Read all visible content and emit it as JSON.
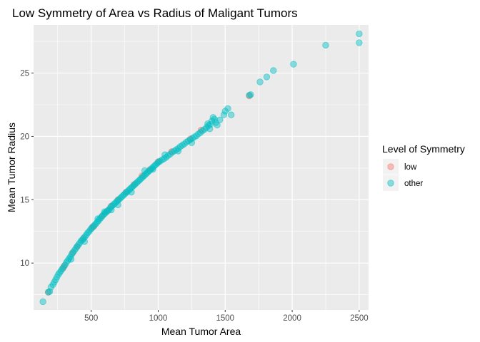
{
  "chart_data": {
    "type": "scatter",
    "title": "Low Symmetry of Area vs Radius of Maligant Tumors",
    "xlabel": "Mean Tumor Area",
    "ylabel": "Mean Tumor Radius",
    "xlim": [
      70,
      2570
    ],
    "ylim": [
      6.3,
      28.8
    ],
    "x_ticks": [
      500,
      1000,
      1500,
      2000,
      2500
    ],
    "y_ticks": [
      10,
      15,
      20,
      25
    ],
    "x_minor": [
      250,
      750,
      1250,
      1750,
      2250
    ],
    "y_minor": [
      7.5,
      12.5,
      17.5,
      22.5,
      27.5
    ],
    "grid": true,
    "legend": {
      "title": "Level of Symmetry",
      "placement": "right",
      "entries": [
        {
          "label": "low",
          "color": "#f8766d"
        },
        {
          "label": "other",
          "color": "#00bfc4"
        }
      ]
    },
    "series": [
      {
        "name": "low",
        "color": "#f8766d",
        "points": [
          [
            180,
            7.7
          ],
          [
            290,
            9.6
          ],
          [
            300,
            9.8
          ],
          [
            360,
            10.8
          ],
          [
            395,
            11.3
          ],
          [
            440,
            11.9
          ],
          [
            505,
            12.8
          ],
          [
            520,
            12.9
          ],
          [
            580,
            13.7
          ],
          [
            620,
            14.1
          ],
          [
            650,
            14.5
          ],
          [
            700,
            15.0
          ],
          [
            760,
            15.6
          ],
          [
            820,
            16.2
          ],
          [
            880,
            16.9
          ],
          [
            940,
            17.4
          ],
          [
            1000,
            18.0
          ],
          [
            1100,
            18.8
          ],
          [
            1240,
            19.8
          ],
          [
            1320,
            20.5
          ],
          [
            1680,
            23.2
          ]
        ]
      },
      {
        "name": "other",
        "color": "#00bfc4",
        "points": [
          [
            140,
            6.95
          ],
          [
            180,
            7.7
          ],
          [
            190,
            7.75
          ],
          [
            200,
            8.1
          ],
          [
            215,
            8.3
          ],
          [
            225,
            8.5
          ],
          [
            235,
            8.7
          ],
          [
            245,
            8.9
          ],
          [
            255,
            9.1
          ],
          [
            265,
            9.25
          ],
          [
            275,
            9.4
          ],
          [
            285,
            9.55
          ],
          [
            295,
            9.7
          ],
          [
            305,
            9.85
          ],
          [
            315,
            10.05
          ],
          [
            325,
            10.2
          ],
          [
            335,
            10.35
          ],
          [
            345,
            10.5
          ],
          [
            355,
            10.7
          ],
          [
            365,
            10.85
          ],
          [
            375,
            11.0
          ],
          [
            385,
            11.15
          ],
          [
            395,
            11.3
          ],
          [
            405,
            11.45
          ],
          [
            415,
            11.6
          ],
          [
            425,
            11.75
          ],
          [
            435,
            11.85
          ],
          [
            445,
            12.0
          ],
          [
            455,
            12.1
          ],
          [
            465,
            12.25
          ],
          [
            475,
            12.4
          ],
          [
            485,
            12.5
          ],
          [
            495,
            12.65
          ],
          [
            505,
            12.75
          ],
          [
            515,
            12.9
          ],
          [
            525,
            13.0
          ],
          [
            535,
            13.1
          ],
          [
            545,
            13.25
          ],
          [
            555,
            13.35
          ],
          [
            565,
            13.5
          ],
          [
            575,
            13.6
          ],
          [
            585,
            13.75
          ],
          [
            595,
            13.85
          ],
          [
            605,
            13.95
          ],
          [
            615,
            14.05
          ],
          [
            625,
            14.15
          ],
          [
            635,
            14.25
          ],
          [
            645,
            14.4
          ],
          [
            655,
            14.5
          ],
          [
            665,
            14.6
          ],
          [
            675,
            14.7
          ],
          [
            685,
            14.8
          ],
          [
            695,
            14.9
          ],
          [
            705,
            15.0
          ],
          [
            715,
            15.1
          ],
          [
            725,
            15.2
          ],
          [
            735,
            15.3
          ],
          [
            745,
            15.4
          ],
          [
            755,
            15.5
          ],
          [
            765,
            15.6
          ],
          [
            775,
            15.7
          ],
          [
            785,
            15.8
          ],
          [
            795,
            15.9
          ],
          [
            805,
            16.0
          ],
          [
            815,
            16.1
          ],
          [
            825,
            16.2
          ],
          [
            835,
            16.3
          ],
          [
            845,
            16.4
          ],
          [
            855,
            16.5
          ],
          [
            865,
            16.6
          ],
          [
            875,
            16.7
          ],
          [
            885,
            16.8
          ],
          [
            895,
            16.9
          ],
          [
            905,
            17.0
          ],
          [
            915,
            17.1
          ],
          [
            925,
            17.2
          ],
          [
            935,
            17.3
          ],
          [
            945,
            17.4
          ],
          [
            955,
            17.5
          ],
          [
            965,
            17.6
          ],
          [
            975,
            17.7
          ],
          [
            985,
            17.8
          ],
          [
            995,
            17.9
          ],
          [
            1005,
            18.0
          ],
          [
            1015,
            18.05
          ],
          [
            1030,
            18.15
          ],
          [
            1045,
            18.25
          ],
          [
            1060,
            18.35
          ],
          [
            1075,
            18.5
          ],
          [
            1090,
            18.6
          ],
          [
            1105,
            18.75
          ],
          [
            1120,
            18.85
          ],
          [
            1135,
            18.95
          ],
          [
            1150,
            19.05
          ],
          [
            1165,
            19.2
          ],
          [
            1180,
            19.3
          ],
          [
            1195,
            19.4
          ],
          [
            1210,
            19.55
          ],
          [
            1225,
            19.65
          ],
          [
            1240,
            19.75
          ],
          [
            1255,
            19.85
          ],
          [
            1270,
            19.95
          ],
          [
            1285,
            20.05
          ],
          [
            1300,
            20.2
          ],
          [
            1315,
            20.3
          ],
          [
            1330,
            20.45
          ],
          [
            1345,
            20.55
          ],
          [
            1360,
            20.7
          ],
          [
            1375,
            20.85
          ],
          [
            1390,
            20.95
          ],
          [
            1400,
            21.2
          ],
          [
            1410,
            21.5
          ],
          [
            1420,
            21.35
          ],
          [
            1430,
            21.1
          ],
          [
            1370,
            21.0
          ],
          [
            1385,
            20.6
          ],
          [
            1440,
            20.9
          ],
          [
            1460,
            21.3
          ],
          [
            1490,
            21.7
          ],
          [
            1500,
            22.0
          ],
          [
            1520,
            22.2
          ],
          [
            1545,
            21.7
          ],
          [
            1690,
            23.3
          ],
          [
            1680,
            23.25
          ],
          [
            1760,
            24.3
          ],
          [
            1810,
            24.7
          ],
          [
            1860,
            25.2
          ],
          [
            2010,
            25.7
          ],
          [
            2250,
            27.2
          ],
          [
            2500,
            28.1
          ],
          [
            2500,
            27.4
          ],
          [
            900,
            17.3
          ],
          [
            960,
            17.4
          ],
          [
            1050,
            18.55
          ],
          [
            1150,
            18.85
          ],
          [
            1250,
            19.5
          ],
          [
            800,
            15.6
          ],
          [
            700,
            14.6
          ],
          [
            600,
            14.05
          ],
          [
            450,
            11.7
          ],
          [
            350,
            10.3
          ],
          [
            550,
            13.5
          ],
          [
            650,
            14.2
          ]
        ]
      }
    ]
  }
}
